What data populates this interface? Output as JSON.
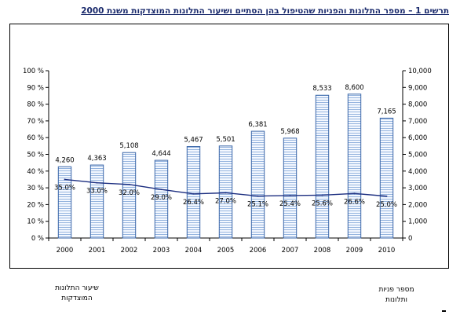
{
  "page": {
    "title": "תרשים 1 – מספר התלונות והפניות שהטיפול בהן הסתיים ושיעור התלונות המוצדקות משנת 2000",
    "legend_left": [
      "שיעור התלונות",
      "המוצדקות"
    ],
    "legend_right": [
      "מספר פניות",
      "ותלונות"
    ]
  },
  "colors": {
    "bar_stroke": "#3a66a8",
    "bar_fill": "#f0f6ff",
    "line": "#1c2e80"
  },
  "chart_data": {
    "type": "bar",
    "categories": [
      "2000",
      "2001",
      "2002",
      "2003",
      "2004",
      "2005",
      "2006",
      "2007",
      "2008",
      "2009",
      "2010"
    ],
    "series": [
      {
        "values": [
          4260,
          4363,
          5108,
          4644,
          5467,
          5501,
          6381,
          5968,
          8533,
          8600,
          7165
        ],
        "labels": [
          "4,260",
          "4,363",
          "5,108",
          "4,644",
          "5,467",
          "5,501",
          "6,381",
          "5,968",
          "8,533",
          "8,600",
          "7,165"
        ]
      },
      {
        "values": [
          35.0,
          33.0,
          32.0,
          29.0,
          26.4,
          27.0,
          25.1,
          25.4,
          25.6,
          26.6,
          25.0
        ],
        "labels": [
          "35.0%",
          "33.0%",
          "32.0%",
          "29.0%",
          "26.4%",
          "27.0%",
          "25.1%",
          "25.4%",
          "25.6%",
          "26.6%",
          "25.0%"
        ]
      }
    ],
    "y_left": {
      "min": 0,
      "max": 100,
      "ticks": [
        "0 %",
        "10 %",
        "20 %",
        "30 %",
        "40 %",
        "50 %",
        "60 %",
        "70 %",
        "80 %",
        "90 %",
        "100 %"
      ]
    },
    "y_right": {
      "min": 0,
      "max": 10000,
      "ticks": [
        "0",
        "1,000",
        "2,000",
        "3,000",
        "4,000",
        "5,000",
        "6,000",
        "7,000",
        "8,000",
        "9,000",
        "10,000"
      ]
    },
    "grid": false
  }
}
